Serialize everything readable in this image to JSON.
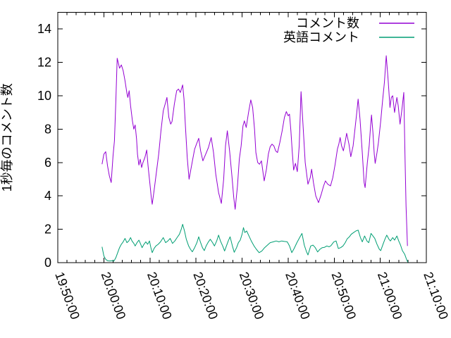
{
  "chart_data": {
    "type": "line",
    "title": "",
    "xlabel": "",
    "ylabel": "1秒毎のコメント数",
    "grid": false,
    "background": "#ffffff",
    "axis_color": "#000000",
    "legend_position": "top-right-inside",
    "xlim_minutes": [
      0,
      80
    ],
    "x_axis_start_label": "19:50:00",
    "x_tick_minutes": [
      0,
      10,
      20,
      30,
      40,
      50,
      60,
      70,
      80
    ],
    "x_tick_labels": [
      "19:50:00",
      "20:00:00",
      "20:10:00",
      "20:20:00",
      "20:30:00",
      "20:40:00",
      "20:50:00",
      "21:00:00",
      "21:10:00"
    ],
    "x_minor_step_minutes": 2,
    "ylim": [
      0,
      15
    ],
    "y_ticks": [
      0,
      2,
      4,
      6,
      8,
      10,
      12,
      14
    ],
    "series": [
      {
        "name": "コメント数",
        "color": "#9400d3",
        "points": [
          [
            9.6,
            5.9
          ],
          [
            10.0,
            6.5
          ],
          [
            10.4,
            6.65
          ],
          [
            10.8,
            5.8
          ],
          [
            11.2,
            5.2
          ],
          [
            11.6,
            4.8
          ],
          [
            12.0,
            6.4
          ],
          [
            12.3,
            7.3
          ],
          [
            12.6,
            9.7
          ],
          [
            12.9,
            12.25
          ],
          [
            13.2,
            11.9
          ],
          [
            13.4,
            11.65
          ],
          [
            13.8,
            11.85
          ],
          [
            14.2,
            11.5
          ],
          [
            14.6,
            10.9
          ],
          [
            15.0,
            10.15
          ],
          [
            15.2,
            9.9
          ],
          [
            15.5,
            10.3
          ],
          [
            15.8,
            9.4
          ],
          [
            16.2,
            8.5
          ],
          [
            16.5,
            8.0
          ],
          [
            16.8,
            8.25
          ],
          [
            17.1,
            7.4
          ],
          [
            17.3,
            6.5
          ],
          [
            17.6,
            5.85
          ],
          [
            17.9,
            6.2
          ],
          [
            18.2,
            5.7
          ],
          [
            18.5,
            6.0
          ],
          [
            18.9,
            6.3
          ],
          [
            19.3,
            6.75
          ],
          [
            19.6,
            5.8
          ],
          [
            20.0,
            4.7
          ],
          [
            20.3,
            3.9
          ],
          [
            20.5,
            3.5
          ],
          [
            20.9,
            4.3
          ],
          [
            21.4,
            5.4
          ],
          [
            21.9,
            6.5
          ],
          [
            22.4,
            7.9
          ],
          [
            22.9,
            9.1
          ],
          [
            23.4,
            9.6
          ],
          [
            23.7,
            9.9
          ],
          [
            24.1,
            8.7
          ],
          [
            24.5,
            8.3
          ],
          [
            24.8,
            8.45
          ],
          [
            25.3,
            9.5
          ],
          [
            25.8,
            10.3
          ],
          [
            26.2,
            10.4
          ],
          [
            26.6,
            10.2
          ],
          [
            27.1,
            10.65
          ],
          [
            27.4,
            9.8
          ],
          [
            27.7,
            8.2
          ],
          [
            28.1,
            6.3
          ],
          [
            28.5,
            5.0
          ],
          [
            28.9,
            5.6
          ],
          [
            29.3,
            6.2
          ],
          [
            29.7,
            6.8
          ],
          [
            30.1,
            7.1
          ],
          [
            30.6,
            7.45
          ],
          [
            31.0,
            6.7
          ],
          [
            31.5,
            6.1
          ],
          [
            32.1,
            6.5
          ],
          [
            32.7,
            6.9
          ],
          [
            33.3,
            7.5
          ],
          [
            33.8,
            6.6
          ],
          [
            34.3,
            5.3
          ],
          [
            34.9,
            4.2
          ],
          [
            35.5,
            3.55
          ],
          [
            36.0,
            5.0
          ],
          [
            36.4,
            7.0
          ],
          [
            36.8,
            7.9
          ],
          [
            37.3,
            6.7
          ],
          [
            37.8,
            5.2
          ],
          [
            38.2,
            3.9
          ],
          [
            38.5,
            3.2
          ],
          [
            39.0,
            4.6
          ],
          [
            39.4,
            6.2
          ],
          [
            39.8,
            7.0
          ],
          [
            40.2,
            8.2
          ],
          [
            40.5,
            8.5
          ],
          [
            40.9,
            8.1
          ],
          [
            41.4,
            9.0
          ],
          [
            41.9,
            9.75
          ],
          [
            42.3,
            9.3
          ],
          [
            42.7,
            8.0
          ],
          [
            43.0,
            6.6
          ],
          [
            43.4,
            6.0
          ],
          [
            43.8,
            5.9
          ],
          [
            44.2,
            6.1
          ],
          [
            44.8,
            4.9
          ],
          [
            45.3,
            5.6
          ],
          [
            45.7,
            6.5
          ],
          [
            46.1,
            6.95
          ],
          [
            46.5,
            7.1
          ],
          [
            46.9,
            7.0
          ],
          [
            47.3,
            6.7
          ],
          [
            47.7,
            6.6
          ],
          [
            48.2,
            7.2
          ],
          [
            48.7,
            7.9
          ],
          [
            49.2,
            8.7
          ],
          [
            49.6,
            9.05
          ],
          [
            50.0,
            8.8
          ],
          [
            50.3,
            8.9
          ],
          [
            50.6,
            7.9
          ],
          [
            50.9,
            6.6
          ],
          [
            51.2,
            5.55
          ],
          [
            51.6,
            5.95
          ],
          [
            52.0,
            5.45
          ],
          [
            52.4,
            7.0
          ],
          [
            52.8,
            10.25
          ],
          [
            53.2,
            8.4
          ],
          [
            53.7,
            6.0
          ],
          [
            54.3,
            4.7
          ],
          [
            54.8,
            5.1
          ],
          [
            55.1,
            5.6
          ],
          [
            55.5,
            4.8
          ],
          [
            56.0,
            4.0
          ],
          [
            56.6,
            3.6
          ],
          [
            57.2,
            4.1
          ],
          [
            57.7,
            4.6
          ],
          [
            58.1,
            4.9
          ],
          [
            58.6,
            4.7
          ],
          [
            59.2,
            4.6
          ],
          [
            59.7,
            5.1
          ],
          [
            60.2,
            5.9
          ],
          [
            60.7,
            6.8
          ],
          [
            61.0,
            7.1
          ],
          [
            61.3,
            7.5
          ],
          [
            61.6,
            7.0
          ],
          [
            62.0,
            6.7
          ],
          [
            62.4,
            7.25
          ],
          [
            62.7,
            7.75
          ],
          [
            63.2,
            7.1
          ],
          [
            63.6,
            6.35
          ],
          [
            64.1,
            7.0
          ],
          [
            64.5,
            8.0
          ],
          [
            64.9,
            9.0
          ],
          [
            65.2,
            9.8
          ],
          [
            65.6,
            8.6
          ],
          [
            66.1,
            6.6
          ],
          [
            66.5,
            4.8
          ],
          [
            66.7,
            4.5
          ],
          [
            67.2,
            6.0
          ],
          [
            67.6,
            7.0
          ],
          [
            67.9,
            8.2
          ],
          [
            68.1,
            8.85
          ],
          [
            68.4,
            7.8
          ],
          [
            68.7,
            6.5
          ],
          [
            68.9,
            5.95
          ],
          [
            69.3,
            6.6
          ],
          [
            69.6,
            7.2
          ],
          [
            70.1,
            8.5
          ],
          [
            70.5,
            9.7
          ],
          [
            70.9,
            10.8
          ],
          [
            71.3,
            12.4
          ],
          [
            71.7,
            11.0
          ],
          [
            72.1,
            9.3
          ],
          [
            72.4,
            9.9
          ],
          [
            72.7,
            10.0
          ],
          [
            73.1,
            9.0
          ],
          [
            73.6,
            9.9
          ],
          [
            73.9,
            9.4
          ],
          [
            74.3,
            8.3
          ],
          [
            74.7,
            9.2
          ],
          [
            75.1,
            10.2
          ],
          [
            75.4,
            6.0
          ],
          [
            75.6,
            3.4
          ],
          [
            75.9,
            1.0
          ]
        ]
      },
      {
        "name": "英語コメント",
        "color": "#009e73",
        "points": [
          [
            9.6,
            0.95
          ],
          [
            10.0,
            0.4
          ],
          [
            10.4,
            0.2
          ],
          [
            10.8,
            0.12
          ],
          [
            11.3,
            0.1
          ],
          [
            11.8,
            0.12
          ],
          [
            12.2,
            0.1
          ],
          [
            12.6,
            0.3
          ],
          [
            13.0,
            0.6
          ],
          [
            13.4,
            0.9
          ],
          [
            13.8,
            1.1
          ],
          [
            14.2,
            1.25
          ],
          [
            14.6,
            1.45
          ],
          [
            15.0,
            1.2
          ],
          [
            15.4,
            1.3
          ],
          [
            15.8,
            1.5
          ],
          [
            16.1,
            1.3
          ],
          [
            16.5,
            1.15
          ],
          [
            16.8,
            1.0
          ],
          [
            17.2,
            1.2
          ],
          [
            17.6,
            1.35
          ],
          [
            18.0,
            1.1
          ],
          [
            18.3,
            0.9
          ],
          [
            18.7,
            1.1
          ],
          [
            19.1,
            1.25
          ],
          [
            19.5,
            1.1
          ],
          [
            19.9,
            1.3
          ],
          [
            20.2,
            0.9
          ],
          [
            20.5,
            0.6
          ],
          [
            20.9,
            0.85
          ],
          [
            21.3,
            1.0
          ],
          [
            21.8,
            1.1
          ],
          [
            22.3,
            1.25
          ],
          [
            22.9,
            1.5
          ],
          [
            23.4,
            1.2
          ],
          [
            23.9,
            1.3
          ],
          [
            24.4,
            1.45
          ],
          [
            24.9,
            1.15
          ],
          [
            25.4,
            1.3
          ],
          [
            25.9,
            1.5
          ],
          [
            26.4,
            1.7
          ],
          [
            26.8,
            2.0
          ],
          [
            27.1,
            2.3
          ],
          [
            27.5,
            1.9
          ],
          [
            27.9,
            1.4
          ],
          [
            28.4,
            1.0
          ],
          [
            28.8,
            0.8
          ],
          [
            29.2,
            0.65
          ],
          [
            29.7,
            0.9
          ],
          [
            30.2,
            1.2
          ],
          [
            30.6,
            1.55
          ],
          [
            31.0,
            1.2
          ],
          [
            31.4,
            0.9
          ],
          [
            31.8,
            0.72
          ],
          [
            32.2,
            1.0
          ],
          [
            32.7,
            1.25
          ],
          [
            33.1,
            1.4
          ],
          [
            33.6,
            1.2
          ],
          [
            34.0,
            1.0
          ],
          [
            34.5,
            1.3
          ],
          [
            34.9,
            1.65
          ],
          [
            35.3,
            1.3
          ],
          [
            35.8,
            1.0
          ],
          [
            36.2,
            0.7
          ],
          [
            36.6,
            1.0
          ],
          [
            37.0,
            1.3
          ],
          [
            37.4,
            1.55
          ],
          [
            37.9,
            1.0
          ],
          [
            38.3,
            0.62
          ],
          [
            38.8,
            0.9
          ],
          [
            39.2,
            1.2
          ],
          [
            39.6,
            1.35
          ],
          [
            40.0,
            1.7
          ],
          [
            40.3,
            2.1
          ],
          [
            40.6,
            1.8
          ],
          [
            41.0,
            1.9
          ],
          [
            41.5,
            1.6
          ],
          [
            42.0,
            1.3
          ],
          [
            42.6,
            1.0
          ],
          [
            43.1,
            0.8
          ],
          [
            43.7,
            0.6
          ],
          [
            44.3,
            0.7
          ],
          [
            44.9,
            0.9
          ],
          [
            45.5,
            1.05
          ],
          [
            46.1,
            1.2
          ],
          [
            46.8,
            1.25
          ],
          [
            47.4,
            1.3
          ],
          [
            48.0,
            1.25
          ],
          [
            48.6,
            1.3
          ],
          [
            49.2,
            1.27
          ],
          [
            49.8,
            1.25
          ],
          [
            50.3,
            1.0
          ],
          [
            50.8,
            0.6
          ],
          [
            51.3,
            0.85
          ],
          [
            51.9,
            1.2
          ],
          [
            52.5,
            1.5
          ],
          [
            53.0,
            1.75
          ],
          [
            53.5,
            1.05
          ],
          [
            54.0,
            0.65
          ],
          [
            54.3,
            0.46
          ],
          [
            54.9,
            1.0
          ],
          [
            55.4,
            1.05
          ],
          [
            55.9,
            0.9
          ],
          [
            56.4,
            0.64
          ],
          [
            56.9,
            0.8
          ],
          [
            57.4,
            0.9
          ],
          [
            57.9,
            0.92
          ],
          [
            58.4,
            1.0
          ],
          [
            58.9,
            0.95
          ],
          [
            59.3,
            1.02
          ],
          [
            59.9,
            1.24
          ],
          [
            60.4,
            1.3
          ],
          [
            60.9,
            0.85
          ],
          [
            61.4,
            0.9
          ],
          [
            61.9,
            1.0
          ],
          [
            62.4,
            1.2
          ],
          [
            62.8,
            1.42
          ],
          [
            63.3,
            1.55
          ],
          [
            63.7,
            1.7
          ],
          [
            64.2,
            1.8
          ],
          [
            64.7,
            1.9
          ],
          [
            65.2,
            1.95
          ],
          [
            65.7,
            1.5
          ],
          [
            66.1,
            1.25
          ],
          [
            66.6,
            1.6
          ],
          [
            67.1,
            1.3
          ],
          [
            67.5,
            1.2
          ],
          [
            68.0,
            1.75
          ],
          [
            68.4,
            1.6
          ],
          [
            68.8,
            1.45
          ],
          [
            69.3,
            1.1
          ],
          [
            69.8,
            0.8
          ],
          [
            70.1,
            0.72
          ],
          [
            70.6,
            1.1
          ],
          [
            71.0,
            1.4
          ],
          [
            71.4,
            1.65
          ],
          [
            71.9,
            1.4
          ],
          [
            72.2,
            1.3
          ],
          [
            72.7,
            1.5
          ],
          [
            73.1,
            1.35
          ],
          [
            73.6,
            1.6
          ],
          [
            74.0,
            1.3
          ],
          [
            74.4,
            1.05
          ],
          [
            74.8,
            0.72
          ],
          [
            75.3,
            0.5
          ],
          [
            75.7,
            0.2
          ],
          [
            76.0,
            0.02
          ]
        ]
      }
    ]
  }
}
